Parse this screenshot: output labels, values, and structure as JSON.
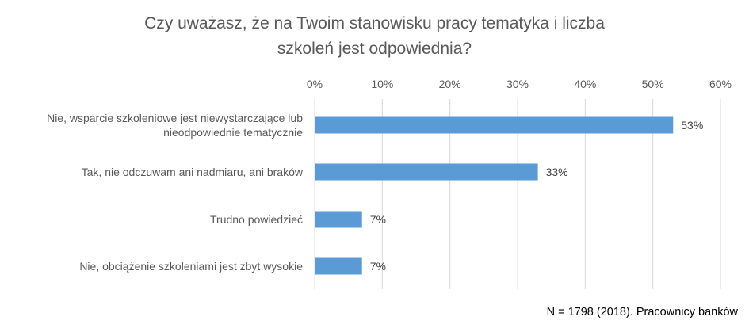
{
  "chart_data": {
    "type": "bar",
    "orientation": "horizontal",
    "title_lines": [
      "Czy uważasz, że na Twoim stanowisku pracy tematyka i liczba",
      "szkoleń jest odpowiednia?"
    ],
    "categories": [
      [
        "Nie, wsparcie szkoleniowe jest niewystarczające lub",
        "nieodpowiednie tematycznie"
      ],
      [
        "Tak, nie odczuwam ani nadmiaru, ani braków"
      ],
      [
        "Trudno powiedzieć"
      ],
      [
        "Nie, obciążenie szkoleniami jest zbyt wysokie"
      ]
    ],
    "values": [
      53,
      33,
      7,
      7
    ],
    "value_labels": [
      "53%",
      "33%",
      "7%",
      "7%"
    ],
    "xlim": [
      0,
      60
    ],
    "ticks": [
      0,
      10,
      20,
      30,
      40,
      50,
      60
    ],
    "tick_labels": [
      "0%",
      "10%",
      "20%",
      "30%",
      "40%",
      "50%",
      "60%"
    ],
    "axis_position": "top",
    "grid": true,
    "bar_color": "#5B9BD5",
    "grid_color": "#D9D9D9"
  },
  "footnote": "N = 1798 (2018). Pracownicy banków"
}
